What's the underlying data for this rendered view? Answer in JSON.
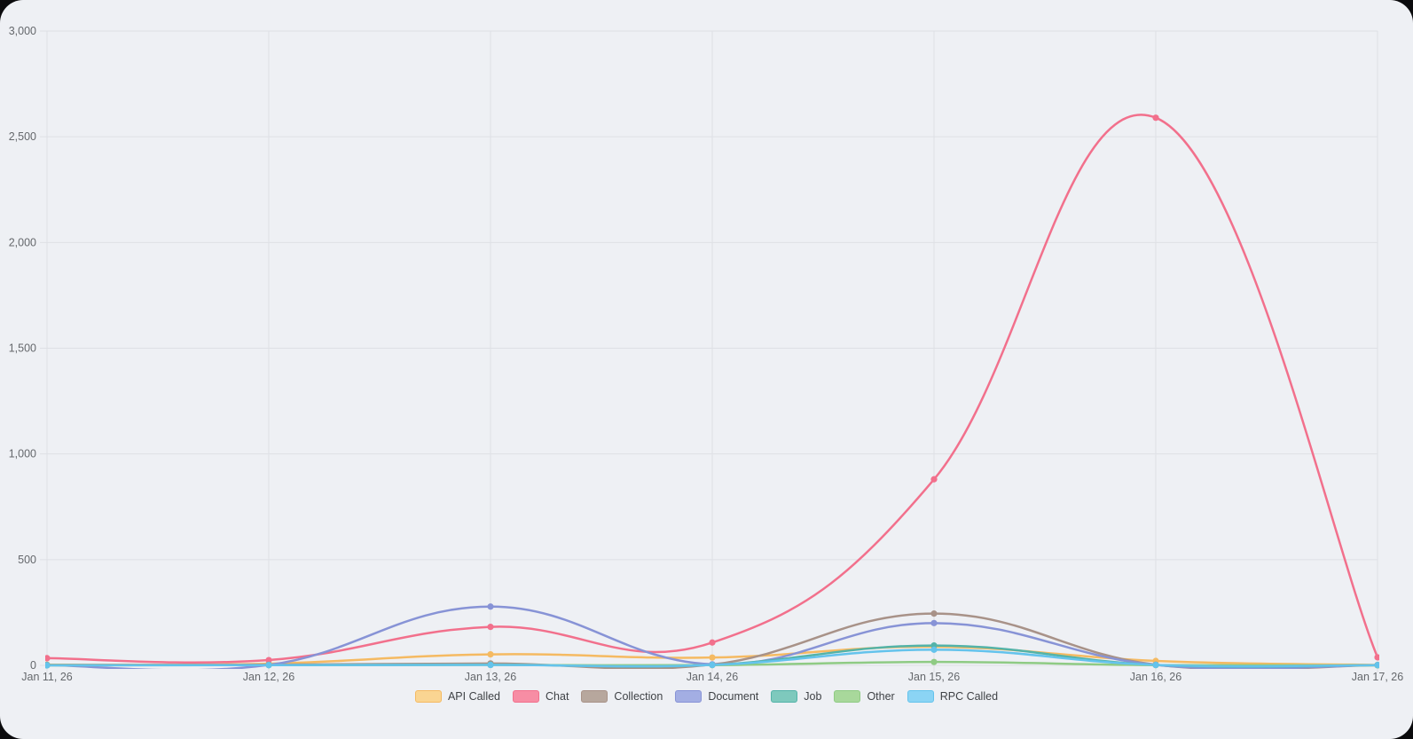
{
  "chart_data": {
    "type": "line",
    "title": "",
    "xlabel": "",
    "ylabel": "",
    "x": [
      "Jan 11, 26",
      "Jan 12, 26",
      "Jan 13, 26",
      "Jan 14, 26",
      "Jan 15, 26",
      "Jan 16, 26",
      "Jan 17, 26"
    ],
    "series": [
      {
        "name": "API Called",
        "color": "#F5BA62",
        "legend_fill": "#FAD592",
        "values": [
          3,
          8,
          52,
          37,
          88,
          21,
          2
        ]
      },
      {
        "name": "Chat",
        "color": "#F2708C",
        "legend_fill": "#F78DA4",
        "values": [
          34,
          25,
          182,
          108,
          880,
          2590,
          38
        ]
      },
      {
        "name": "Collection",
        "color": "#A89288",
        "legend_fill": "#B7A79D",
        "values": [
          2,
          3,
          9,
          4,
          245,
          3,
          1
        ]
      },
      {
        "name": "Document",
        "color": "#8793D6",
        "legend_fill": "#A3AEE3",
        "values": [
          1,
          2,
          278,
          5,
          200,
          2,
          1
        ]
      },
      {
        "name": "Job",
        "color": "#53B3A8",
        "legend_fill": "#7EC9BD",
        "values": [
          1,
          1,
          3,
          2,
          94,
          2,
          1
        ]
      },
      {
        "name": "Other",
        "color": "#8FCB84",
        "legend_fill": "#A8D89B",
        "values": [
          0,
          1,
          2,
          1,
          16,
          1,
          0
        ]
      },
      {
        "name": "RPC Called",
        "color": "#64C3EC",
        "legend_fill": "#8BD4F4",
        "values": [
          0,
          1,
          2,
          2,
          74,
          2,
          1
        ]
      }
    ],
    "y_ticks": [
      0,
      500,
      1000,
      1500,
      2000,
      2500,
      3000
    ],
    "y_tick_labels": [
      "0",
      "500",
      "1,000",
      "1,500",
      "2,000",
      "2,500",
      "3,000"
    ],
    "ylim": [
      0,
      3000
    ],
    "grid": true,
    "legend_position": "bottom"
  },
  "style": {
    "background": "#EEF0F4",
    "grid_color": "#DEE0E5",
    "label_color": "#65686C",
    "legend_text_color": "#3F4246"
  }
}
